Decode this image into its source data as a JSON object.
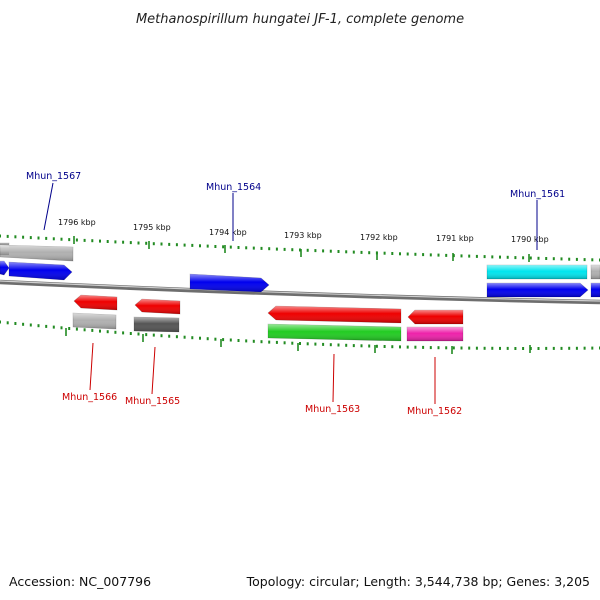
{
  "title": "Methanospirillum hungatei JF-1, complete genome",
  "footer": {
    "accession": "Accession: NC_007796",
    "summary": "Topology: circular; Length: 3,544,738 bp; Genes: 3,205"
  },
  "colors": {
    "backbone": "#808080",
    "tick": "#228b22",
    "label_top": "#00008b",
    "label_bottom": "#cc0000"
  },
  "ticks": [
    "1796 kbp",
    "1795 kbp",
    "1794 kbp",
    "1793 kbp",
    "1792 kbp",
    "1791 kbp",
    "1790 kbp"
  ],
  "gene_labels": {
    "top": [
      "Mhun_1567",
      "Mhun_1564",
      "Mhun_1561"
    ],
    "bottom": [
      "Mhun_1566",
      "Mhun_1565",
      "Mhun_1563",
      "Mhun_1562"
    ]
  },
  "features": [
    {
      "strand": "top",
      "color": "#555555"
    },
    {
      "strand": "top",
      "color": "#b0b0b0"
    },
    {
      "strand": "top",
      "color": "#0000ee"
    },
    {
      "strand": "top",
      "color": "#0000ee"
    },
    {
      "strand": "top",
      "color": "#0000ee"
    },
    {
      "strand": "top",
      "color": "#00e5ee"
    },
    {
      "strand": "top",
      "color": "#0000ee"
    },
    {
      "strand": "top",
      "color": "#b0b0b0"
    },
    {
      "strand": "top",
      "color": "#0000ee"
    },
    {
      "strand": "bottom",
      "color": "#ee0000"
    },
    {
      "strand": "bottom",
      "color": "#b0b0b0"
    },
    {
      "strand": "bottom",
      "color": "#ee0000"
    },
    {
      "strand": "bottom",
      "color": "#555555"
    },
    {
      "strand": "bottom",
      "color": "#ee0000"
    },
    {
      "strand": "bottom",
      "color": "#22cc22"
    },
    {
      "strand": "bottom",
      "color": "#ee0000"
    },
    {
      "strand": "bottom",
      "color": "#ee22aa"
    }
  ]
}
